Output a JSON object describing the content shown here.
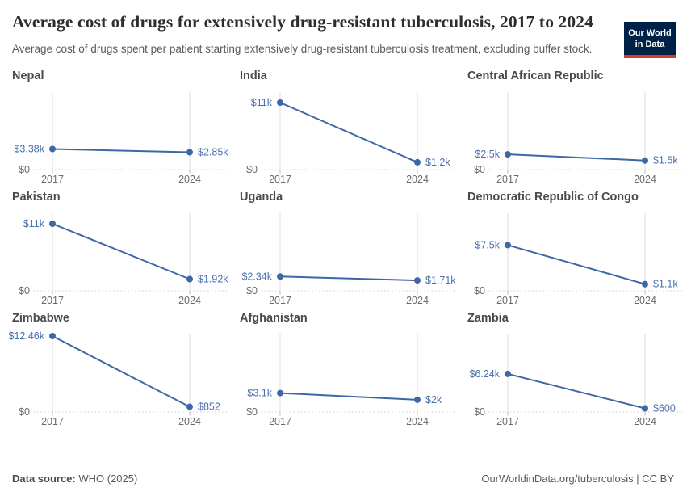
{
  "header": {
    "title": "Average cost of drugs for extensively drug-resistant tuberculosis, 2017 to 2024",
    "subtitle": "Average cost of drugs spent per patient starting extensively drug-resistant tuberculosis treatment, excluding buffer stock.",
    "logo": {
      "line1": "Our World",
      "line2": "in Data",
      "bg_color": "#002147",
      "accent_color": "#d93a2b"
    }
  },
  "chart_data": {
    "type": "line",
    "layout": "facet-grid-3x3",
    "x": [
      2017,
      2024
    ],
    "x_tick_labels": [
      "2017",
      "2024"
    ],
    "ylim": [
      0,
      12460
    ],
    "y_zero_label": "$0",
    "grid": true,
    "legend": "none",
    "line_color": "#3d67a6",
    "label_color": "#4a70b0",
    "axis_color": "#6b6b6b",
    "gridline_color": "#dcdcdc",
    "facets": [
      {
        "title": "Nepal",
        "values": [
          3380,
          2850
        ],
        "labels": [
          "$3.38k",
          "$2.85k"
        ]
      },
      {
        "title": "India",
        "values": [
          11000,
          1200
        ],
        "labels": [
          "$11k",
          "$1.2k"
        ]
      },
      {
        "title": "Central African Republic",
        "values": [
          2500,
          1500
        ],
        "labels": [
          "$2.5k",
          "$1.5k"
        ]
      },
      {
        "title": "Pakistan",
        "values": [
          11000,
          1920
        ],
        "labels": [
          "$11k",
          "$1.92k"
        ]
      },
      {
        "title": "Uganda",
        "values": [
          2340,
          1710
        ],
        "labels": [
          "$2.34k",
          "$1.71k"
        ]
      },
      {
        "title": "Democratic Republic of Congo",
        "values": [
          7500,
          1100
        ],
        "labels": [
          "$7.5k",
          "$1.1k"
        ]
      },
      {
        "title": "Zimbabwe",
        "values": [
          12460,
          852
        ],
        "labels": [
          "$12.46k",
          "$852"
        ]
      },
      {
        "title": "Afghanistan",
        "values": [
          3100,
          2000
        ],
        "labels": [
          "$3.1k",
          "$2k"
        ]
      },
      {
        "title": "Zambia",
        "values": [
          6240,
          600
        ],
        "labels": [
          "$6.24k",
          "$600"
        ]
      }
    ]
  },
  "footer": {
    "source_label": "Data source:",
    "source_value": " WHO (2025)",
    "attribution": "OurWorldinData.org/tuberculosis | CC BY"
  }
}
